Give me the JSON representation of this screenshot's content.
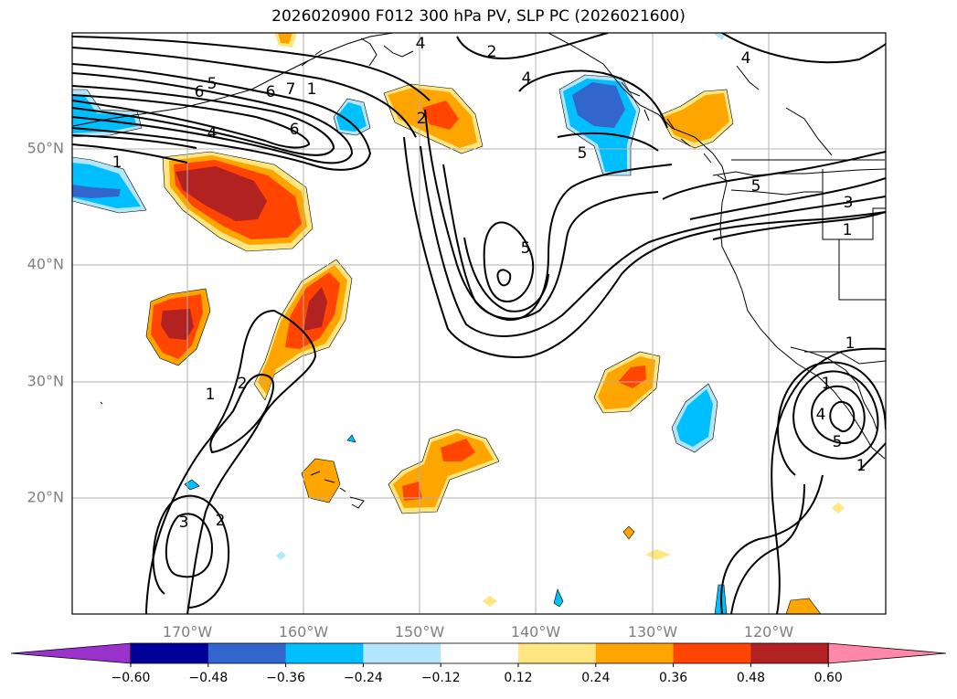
{
  "title": "2026020900 F012 300 hPa PV, SLP PC (2026021600)",
  "map": {
    "lat_labels": [
      "50°N",
      "40°N",
      "30°N",
      "20°N"
    ],
    "lon_labels": [
      "170°W",
      "160°W",
      "150°W",
      "140°W",
      "130°W",
      "120°W"
    ],
    "grid": true,
    "coastline_color": "#000000"
  },
  "colorbar": {
    "orientation": "horizontal",
    "placement": "bottom",
    "extend": "both",
    "tick_labels": [
      "−0.60",
      "−0.48",
      "−0.36",
      "−0.24",
      "−0.12",
      "0.12",
      "0.24",
      "0.36",
      "0.48",
      "0.60"
    ],
    "colors": [
      "#9933cc",
      "#000099",
      "#3366cc",
      "#00bfff",
      "#b3e5fc",
      "#ffffff",
      "#ffe680",
      "#ffa500",
      "#ff4500",
      "#b22222",
      "#ff88aa"
    ]
  },
  "contour_labels": [
    "6",
    "5",
    "6",
    "7",
    "1",
    "6",
    "4",
    "1",
    "2",
    "2",
    "4",
    "4",
    "4",
    "5",
    "5",
    "5",
    "3",
    "1",
    "1",
    "1",
    "2",
    "2",
    "3",
    "1",
    "4",
    "5",
    "1"
  ]
}
